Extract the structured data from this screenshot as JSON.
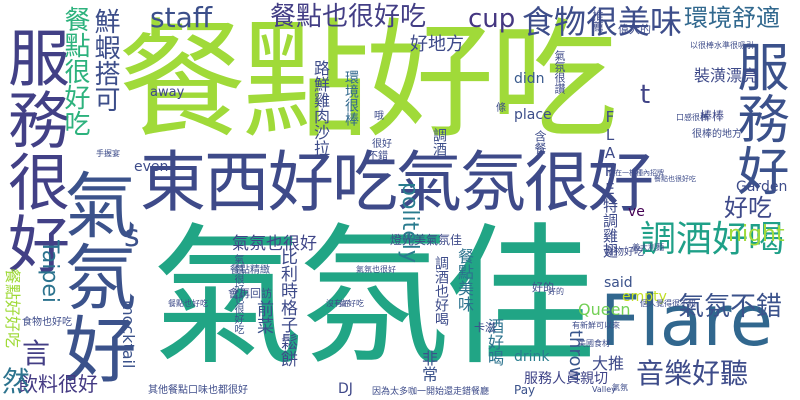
{
  "words": [
    {
      "text": "餐點好吃",
      "color": "#a0da39"
    },
    {
      "text": "氣氛佳",
      "color": "#21a585"
    },
    {
      "text": "東西好吃氣氛很好",
      "color": "#3e4a89"
    },
    {
      "text": "服務很好",
      "color": "#424086"
    },
    {
      "text": "氣氛好",
      "color": "#3b528b"
    },
    {
      "text": "Flare",
      "color": "#31678e"
    },
    {
      "text": "服務好",
      "color": "#3b518b"
    },
    {
      "text": "食物很美味",
      "color": "#3d4d8a"
    },
    {
      "text": "環境舒適",
      "color": "#31688e"
    },
    {
      "text": "餐點很好吃",
      "color": "#2db27d"
    },
    {
      "text": "鮮蝦搭可",
      "color": "#3d4e8a"
    },
    {
      "text": "餐點也很好吃",
      "color": "#433e85"
    },
    {
      "text": "調酒好喝",
      "color": "#1fa088"
    },
    {
      "text": "氣氛不錯",
      "color": "#3b528b"
    },
    {
      "text": "音樂好聽",
      "color": "#3e4c8a"
    },
    {
      "text": "Taipei",
      "color": "#2c738e"
    },
    {
      "text": "staff",
      "color": "#3c4f8a"
    },
    {
      "text": "cup",
      "color": "#453781"
    },
    {
      "text": "night",
      "color": "#9fda3a"
    },
    {
      "text": "好吃",
      "color": "#3e4989"
    },
    {
      "text": "好地方",
      "color": "#3e4a89"
    },
    {
      "text": "氣氛也很好",
      "color": "#404688"
    },
    {
      "text": "飲料很好",
      "color": "#443a83"
    },
    {
      "text": "然",
      "color": "#2c738e"
    },
    {
      "text": "言",
      "color": "#433e85"
    },
    {
      "text": "s",
      "color": "#3b518b"
    },
    {
      "text": "t",
      "color": "#414487"
    },
    {
      "text": "ve",
      "color": "#440154"
    },
    {
      "text": "Garden",
      "color": "#3e4c8a"
    },
    {
      "text": "politely",
      "color": "#297b8e"
    },
    {
      "text": "mocktail",
      "color": "#3b528b"
    },
    {
      "text": "throw",
      "color": "#39568c"
    },
    {
      "text": "drink",
      "color": "#287d8e"
    },
    {
      "text": "Queen",
      "color": "#73d056"
    },
    {
      "text": "empty",
      "color": "#c2df23"
    },
    {
      "text": "said",
      "color": "#3b528b"
    },
    {
      "text": "place",
      "color": "#3d4e8a"
    },
    {
      "text": "didn",
      "color": "#38598c"
    },
    {
      "text": "even",
      "color": "#3e4c8a"
    },
    {
      "text": "away",
      "color": "#3f4889"
    },
    {
      "text": "Pay",
      "color": "#3b528b"
    },
    {
      "text": "DJ",
      "color": "#3f4889"
    },
    {
      "text": "大推",
      "color": "#3e4a89"
    },
    {
      "text": "調酒",
      "color": "#3d4e8a"
    },
    {
      "text": "酒好喝",
      "color": "#2c738e"
    },
    {
      "text": "裝潢漂亮",
      "color": "#3e4a89"
    },
    {
      "text": "棒棒",
      "color": "#3f4889"
    },
    {
      "text": "很棒的地方",
      "color": "#3e4c8a"
    },
    {
      "text": "氣氛很好也很好吃",
      "color": "#3b528b"
    },
    {
      "text": "比利時格子鬆餅",
      "color": "#3e4a89"
    },
    {
      "text": "前菜",
      "color": "#3b518b"
    },
    {
      "text": "會再回訪",
      "color": "#3e4c8a"
    },
    {
      "text": "非常",
      "color": "#3b528b"
    },
    {
      "text": "好的",
      "color": "#3e4c8a"
    },
    {
      "text": "食物好吃",
      "color": "#3e4989"
    },
    {
      "text": "餐點精緻",
      "color": "#3b528b"
    },
    {
      "text": "服務人員親切",
      "color": "#404588"
    },
    {
      "text": "燈光美氣氛佳",
      "color": "#3e4a89"
    },
    {
      "text": "調酒也好喝",
      "color": "#3e4c8a"
    },
    {
      "text": "餐點好好吃",
      "color": "#a0da39"
    },
    {
      "text": "食物也好吃",
      "color": "#3e4c8a"
    },
    {
      "text": "環境很棒",
      "color": "#31688e"
    },
    {
      "text": "路鮮雞肉沙拉",
      "color": "#3e4c8a"
    },
    {
      "text": "FLARE特調雞翅",
      "color": "#3e4a89"
    },
    {
      "text": "含餐",
      "color": "#3e4c8a"
    },
    {
      "text": "餐點美味",
      "color": "#2c738e"
    },
    {
      "text": "推薦",
      "color": "#3e4c8a"
    },
    {
      "text": "偉大的",
      "color": "#3e4c8a"
    },
    {
      "text": "不錯",
      "color": "#3e4c8a"
    },
    {
      "text": "很好",
      "color": "#3e4c8a"
    },
    {
      "text": "氣氛很讚",
      "color": "#3e4a89"
    },
    {
      "text": "Valley",
      "color": "#3e4c8a"
    },
    {
      "text": "哦",
      "color": "#3e4c8a"
    },
    {
      "text": "條",
      "color": "#3e4c8a"
    },
    {
      "text": "卡滋",
      "color": "#3e4c8a"
    },
    {
      "text": "美國食材",
      "color": "#3e4c8a"
    },
    {
      "text": "有新鮮可以來",
      "color": "#3e4c8a"
    },
    {
      "text": "以很棒水準很吸引",
      "color": "#3e4c8a"
    },
    {
      "text": "義大利麵",
      "color": "#3e4c8a"
    },
    {
      "text": "其他餐點口味也都很好",
      "color": "#3e4c8a"
    },
    {
      "text": "因為太多咖一開始還走錯餐廳",
      "color": "#3e4c8a"
    },
    {
      "text": "餐點也好吃",
      "color": "#3e4c8a"
    },
    {
      "text": "氣氛也很好",
      "color": "#3e4c8a"
    },
    {
      "text": "好的",
      "color": "#3e4c8a"
    },
    {
      "text": "個人覺得很不錯",
      "color": "#3e4c8a"
    },
    {
      "text": "口感很棒",
      "color": "#3e4c8a"
    },
    {
      "text": "位在一棟種內招牌",
      "color": "#3e4c8a"
    },
    {
      "text": "餐點也很好吃",
      "color": "#3e4c8a"
    },
    {
      "text": "手握宴",
      "color": "#3e4c8a"
    },
    {
      "text": "沒有好",
      "color": "#3e4c8a"
    },
    {
      "text": "氣氛",
      "color": "#3e4c8a"
    },
    {
      "text": "好好吃",
      "color": "#3e4c8a"
    }
  ]
}
